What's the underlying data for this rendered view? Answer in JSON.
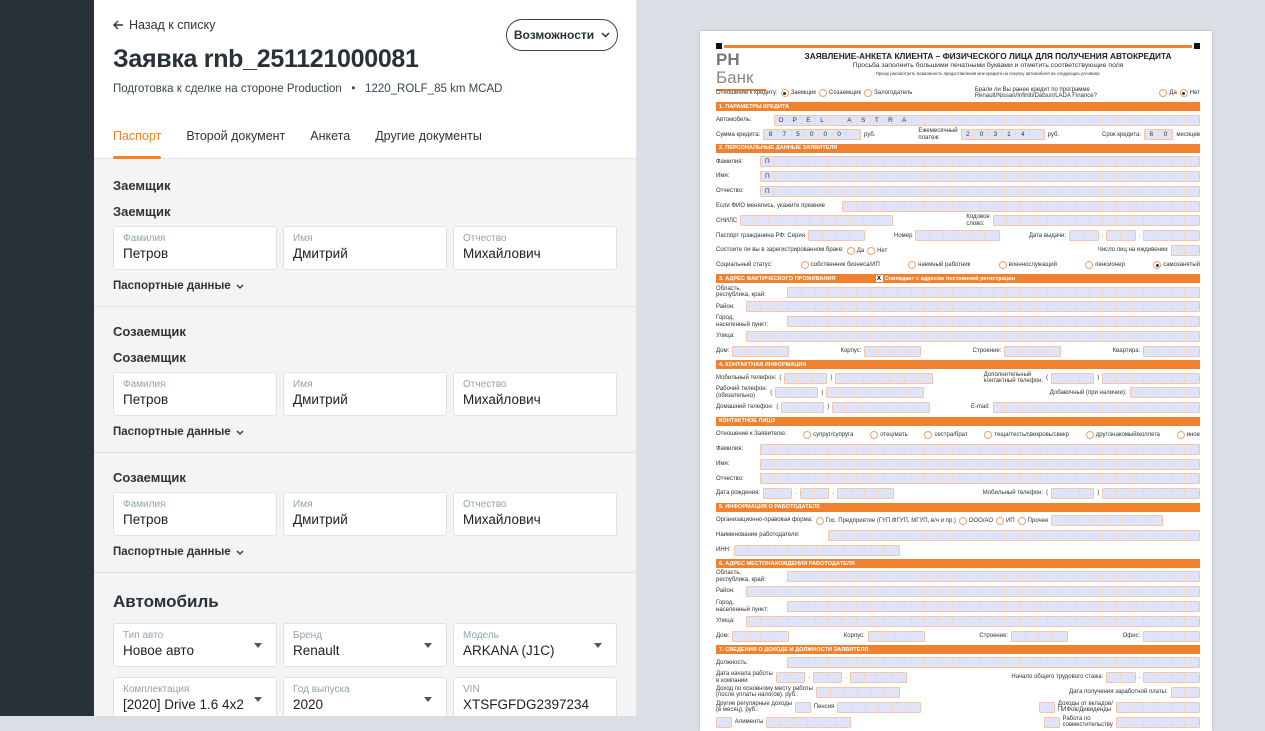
{
  "header": {
    "back_label": "Назад к списку",
    "title": "Заявка rnb_251121000081",
    "status": "Подготовка к сделке на стороне Production",
    "dealer": "1220_ROLF_85 km MCAD",
    "separator": "•",
    "options_label": "Возможности"
  },
  "tabs": [
    {
      "label": "Паспорт",
      "active": true
    },
    {
      "label": "Второй документ"
    },
    {
      "label": "Анкета"
    },
    {
      "label": "Другие документы"
    }
  ],
  "persons": [
    {
      "section": "Заемщик",
      "title": "Заемщик",
      "fields": [
        {
          "label": "Фамилия",
          "value": "Петров"
        },
        {
          "label": "Имя",
          "value": "Дмитрий"
        },
        {
          "label": "Отчество",
          "value": "Михайлович"
        }
      ],
      "toggle": "Паспортные данные"
    },
    {
      "section": "Созаемщик",
      "title": "Созаемщик",
      "fields": [
        {
          "label": "Фамилия",
          "value": "Петров"
        },
        {
          "label": "Имя",
          "value": "Дмитрий"
        },
        {
          "label": "Отчество",
          "value": "Михайлович"
        }
      ],
      "toggle": "Паспортные данные"
    },
    {
      "title": "Созаемщик",
      "fields": [
        {
          "label": "Фамилия",
          "value": "Петров"
        },
        {
          "label": "Имя",
          "value": "Дмитрий"
        },
        {
          "label": "Отчество",
          "value": "Михайлович"
        }
      ],
      "toggle": "Паспортные данные"
    }
  ],
  "car": {
    "title": "Автомобиль",
    "fields": [
      {
        "label": "Тип авто",
        "value": "Новое авто",
        "select": true
      },
      {
        "label": "Бренд",
        "value": "Renault",
        "select": true
      },
      {
        "label": "Модель",
        "value": "ARKANA (J1C)",
        "select": true
      },
      {
        "label": "Комплектация",
        "value": "[2020] Drive 1.6 4x2",
        "select": true
      },
      {
        "label": "Год выпуска",
        "value": "2020",
        "select": true
      },
      {
        "label": "VIN",
        "value": "XTSFGFDG2397234",
        "select": false
      }
    ]
  },
  "colors": {
    "accent": "#f5821f",
    "sidebar": "#263238",
    "doc_orange": "#f0822f",
    "doc_cell": "#dfe4fb"
  },
  "document": {
    "logo": "РН Банк",
    "title": "ЗАЯВЛЕНИЕ-АНКЕТА КЛИЕНТА – ФИЗИЧЕСКОГО ЛИЦА ДЛЯ ПОЛУЧЕНИЯ АВТОКРЕДИТА",
    "subtitle": "Просьба заполнить большими печатными буквами и отметить соответствующие поля",
    "note": "Прошу рассмотреть возможность предоставления мне кредита на покупку автомобиля на следующих условиях:",
    "rows": [
      [
        [
          {
            "r": "Отношение к кредиту:",
            "l": 1
          },
          {
            "r": "Заемщик",
            "on": true
          },
          {
            "r": "Созаемщик"
          },
          {
            "r": "Залогодатель"
          }
        ],
        [
          {
            "l": "Брали ли Вы ранее кредит по программе\nRenault/Nissan/Infiniti/Datsun/LADA Finance?"
          }
        ],
        [
          {
            "r": "Да"
          },
          {
            "r": "Нет",
            "on": true
          }
        ]
      ],
      {
        "bar": "1. ПАРАМЕТРЫ КРЕДИТА"
      },
      [
        [
          {
            "l": "Автомобиль:"
          },
          {
            "c": 31,
            "v": "OPEL ASTRA"
          }
        ]
      ],
      [
        [
          {
            "l": "Сумма кредита:"
          },
          {
            "c": 7,
            "v": "875000"
          },
          {
            "l": "руб."
          }
        ],
        [
          {
            "l": "Ежемесячный\nплатеж:"
          },
          {
            "c": 6,
            "v": "20314"
          },
          {
            "l": "руб."
          }
        ],
        [
          {
            "l": "Срок кредита:"
          },
          {
            "c": 2,
            "v": "60"
          },
          {
            "l": "месяцев"
          }
        ]
      ],
      {
        "bar": "2. ПЕРСОНАЛЬНЫЕ ДАННЫЕ ЗАЯВИТЕЛЯ"
      },
      [
        [
          {
            "l": "Фамилия:"
          },
          {
            "c": 32,
            "v": "П"
          }
        ]
      ],
      [
        [
          {
            "l": "Имя:"
          },
          {
            "c": 32,
            "v": "П"
          }
        ]
      ],
      [
        [
          {
            "l": "Отчество:"
          },
          {
            "c": 32,
            "v": "П"
          }
        ]
      ],
      [
        [
          {
            "l": "Если ФИО менялись, укажите прежние"
          },
          {
            "c": 26
          }
        ]
      ],
      [
        [
          {
            "l": "СНИЛС"
          },
          {
            "c": 11
          }
        ],
        [
          {
            "l": "Кодовое\nслово:"
          },
          {
            "c": 15
          }
        ]
      ],
      [
        [
          {
            "l": "Паспорт гражданина РФ: Серия"
          },
          {
            "c": 4
          }
        ],
        [
          {
            "l": "Номер"
          },
          {
            "c": 6
          }
        ],
        [
          {
            "l": "Дата выдачи:"
          },
          {
            "c": 2
          },
          {
            "l": "."
          },
          {
            "c": 2
          },
          {
            "l": "."
          },
          {
            "c": 4
          }
        ]
      ],
      [
        [
          {
            "l": "Состоите ли вы в зарегистрированном браке:"
          },
          {
            "r": "Да"
          },
          {
            "r": "Нет"
          }
        ],
        [
          {
            "l": "Число лиц на иждивении"
          },
          {
            "c": 2
          }
        ]
      ],
      [
        [
          {
            "l": "Социальный статус:"
          },
          {
            "r": "собственник бизнеса/ИП"
          },
          {
            "r": "наемный работник"
          },
          {
            "r": "военнослужащий"
          },
          {
            "r": "пенсионер"
          },
          {
            "r": "самозанятый",
            "on": true
          }
        ]
      ],
      {
        "bar": "3. АДРЕС ФАКТИЧЕСКОГО ПРОЖИВАНИЯ",
        "check": "Совпадает с адресом постоянной регистрации",
        "mark": "X"
      },
      [
        [
          {
            "l": "Область,\nреспублика, край:"
          },
          {
            "c": 30
          }
        ]
      ],
      [
        [
          {
            "l": "Район:"
          },
          {
            "c": 33
          }
        ]
      ],
      [
        [
          {
            "l": "Город,\nнаселенный пункт:"
          },
          {
            "c": 30
          }
        ]
      ],
      [
        [
          {
            "l": "Улица:"
          },
          {
            "c": 33
          }
        ]
      ],
      [
        [
          {
            "l": "Дом:"
          },
          {
            "c": 4
          }
        ],
        [
          {
            "l": "Корпус:"
          },
          {
            "c": 4
          }
        ],
        [
          {
            "l": "Строение:"
          },
          {
            "c": 4
          }
        ],
        [
          {
            "l": "Квартира:"
          },
          {
            "c": 4
          }
        ]
      ],
      {
        "bar": "4. КОНТАКТНАЯ ИНФОРМАЦИЯ"
      },
      [
        [
          {
            "l": "Мобильный телефон:"
          },
          {
            "l": "("
          },
          {
            "c": 3
          },
          {
            "l": ")"
          },
          {
            "c": 7
          }
        ],
        [
          {
            "l": "Дополнительный\nконтактный телефон:"
          },
          {
            "l": "("
          },
          {
            "c": 3
          },
          {
            "l": ")"
          },
          {
            "c": 7
          }
        ]
      ],
      [
        [
          {
            "l": "Рабочий телефон:\n(обязательно)"
          },
          {
            "l": "("
          },
          {
            "c": 3
          },
          {
            "l": ")"
          },
          {
            "c": 7
          }
        ],
        [
          {
            "l": "Добавочный (при наличии):"
          },
          {
            "c": 5
          }
        ]
      ],
      [
        [
          {
            "l": "Домашний телефон:"
          },
          {
            "l": "("
          },
          {
            "c": 3
          },
          {
            "l": ")"
          },
          {
            "c": 7
          }
        ],
        [
          {
            "l": "E-mail:"
          },
          {
            "c": 15
          }
        ]
      ],
      {
        "bar": "КОНТАКТНОЕ ЛИЦО"
      },
      [
        [
          {
            "l": "Отношение к Заявителю:"
          },
          {
            "r": "супруг/супруга"
          },
          {
            "r": "отец/мать"
          },
          {
            "r": "сестра/брат"
          },
          {
            "r": "теща/тесть/свекровь/свекр"
          },
          {
            "r": "друг/знакомый/коллега"
          },
          {
            "r": "иное"
          }
        ]
      ],
      [
        [
          {
            "l": "Фамилия:"
          },
          {
            "c": 32
          }
        ]
      ],
      [
        [
          {
            "l": "Имя:"
          },
          {
            "c": 32
          }
        ]
      ],
      [
        [
          {
            "l": "Отчество:"
          },
          {
            "c": 32
          }
        ]
      ],
      [
        [
          {
            "l": "Дата рождения:"
          },
          {
            "c": 2
          },
          {
            "l": "."
          },
          {
            "c": 2
          },
          {
            "l": "."
          },
          {
            "c": 4
          }
        ],
        [
          {
            "l": "Мобильный телефон:"
          },
          {
            "l": "("
          },
          {
            "c": 3
          },
          {
            "l": ")"
          },
          {
            "c": 7
          }
        ]
      ],
      {
        "bar": "5. ИНФОРМАЦИЯ О РАБОТОДАТЕЛЕ"
      },
      [
        [
          {
            "l": "Организационно-правовая форма:"
          },
          {
            "r": "Гос. Предприятие (ГУП.ФГУП, МГУП, в/ч и пр.)"
          },
          {
            "r": "ООО/АО"
          },
          {
            "r": "ИП"
          },
          {
            "r": "Прочее"
          },
          {
            "c": 8
          }
        ]
      ],
      [
        [
          {
            "l": "Наименование работодателя:"
          },
          {
            "c": 27
          }
        ]
      ],
      [
        [
          {
            "l": "ИНН:"
          },
          {
            "c": 12
          }
        ]
      ],
      {
        "bar": "6. АДРЕС МЕСТОНАХОЖДЕНИЯ РАБОТОДАТЕЛЯ"
      },
      [
        [
          {
            "l": "Область,\nреспублика, край:"
          },
          {
            "c": 30
          }
        ]
      ],
      [
        [
          {
            "l": "Район:"
          },
          {
            "c": 33
          }
        ]
      ],
      [
        [
          {
            "l": "Город,\nнаселенный пункт:"
          },
          {
            "c": 30
          }
        ]
      ],
      [
        [
          {
            "l": "Улица:"
          },
          {
            "c": 33
          }
        ]
      ],
      [
        [
          {
            "l": "Дом:"
          },
          {
            "c": 4
          }
        ],
        [
          {
            "l": "Корпус:"
          },
          {
            "c": 4
          }
        ],
        [
          {
            "l": "Строение:"
          },
          {
            "c": 4
          }
        ],
        [
          {
            "l": "Офис:"
          },
          {
            "c": 4
          }
        ]
      ],
      {
        "bar": "7. СВЕДЕНИЯ О ДОХОДЕ И ДОЛЖНОСТИ ЗАЯВИТЕЛЯ"
      },
      [
        [
          {
            "l": "Должность:"
          },
          {
            "c": 30
          }
        ]
      ],
      [
        [
          {
            "l": "Дата начала работы\nв компании"
          },
          {
            "c": 2
          },
          {
            "l": "."
          },
          {
            "c": 2
          },
          {
            "l": "."
          },
          {
            "c": 4
          }
        ],
        [
          {
            "l": "Начало общего трудового стажа:"
          },
          {
            "c": 2
          },
          {
            "l": "."
          },
          {
            "c": 4
          }
        ]
      ],
      [
        [
          {
            "l": "Доход по основному месту работы\n(после уплаты налогов), руб.:"
          },
          {
            "c": 6
          }
        ],
        [
          {
            "l": "Дата получения заработной платы:"
          },
          {
            "c": 2
          }
        ]
      ],
      [
        [
          {
            "l": "Другие регулярные доходы\n(в месяц), руб.:"
          },
          {
            "c": 1
          },
          {
            "l": "Пенсия"
          },
          {
            "c": 6
          }
        ],
        [
          {
            "c": 1
          },
          {
            "l": "Доходы от вкладов/\nПИФов/Дивиденды"
          },
          {
            "c": 6
          }
        ]
      ],
      [
        [
          {
            "c": 1
          },
          {
            "l": "Алименты"
          },
          {
            "c": 6
          }
        ],
        [
          {
            "c": 1
          },
          {
            "l": "Работа по\nсовместительству"
          },
          {
            "c": 6
          }
        ]
      ]
    ]
  }
}
